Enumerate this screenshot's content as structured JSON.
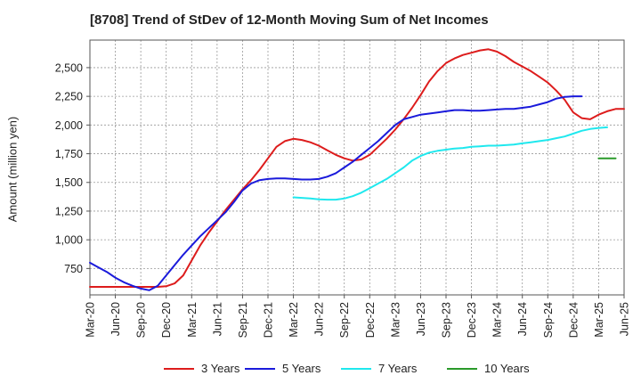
{
  "chart_data": {
    "type": "line",
    "title": "[8708]  Trend of StDev of 12-Month Moving Sum of Net Incomes",
    "xlabel": "",
    "ylabel": "Amount (million yen)",
    "ylim": [
      520,
      2740
    ],
    "yticks": [
      750,
      1000,
      1250,
      1500,
      1750,
      2000,
      2250,
      2500
    ],
    "ytick_labels": [
      "750",
      "1,000",
      "1,250",
      "1,500",
      "1,750",
      "2,000",
      "2,250",
      "2,500"
    ],
    "xticks": [
      "Mar-20",
      "Jun-20",
      "Sep-20",
      "Dec-20",
      "Mar-21",
      "Jun-21",
      "Sep-21",
      "Dec-21",
      "Mar-22",
      "Jun-22",
      "Sep-22",
      "Dec-22",
      "Mar-23",
      "Jun-23",
      "Sep-23",
      "Dec-23",
      "Mar-24",
      "Jun-24",
      "Sep-24",
      "Dec-24",
      "Mar-25",
      "Jun-25"
    ],
    "grid": true,
    "legend_position": "bottom",
    "series": [
      {
        "name": "3 Years",
        "color": "#dd1c1c",
        "start_month": 0,
        "values": [
          590,
          590,
          590,
          590,
          590,
          590,
          590,
          590,
          590,
          595,
          620,
          690,
          820,
          950,
          1060,
          1160,
          1260,
          1350,
          1440,
          1520,
          1610,
          1710,
          1810,
          1860,
          1880,
          1870,
          1850,
          1820,
          1780,
          1740,
          1710,
          1690,
          1700,
          1740,
          1810,
          1880,
          1960,
          2050,
          2150,
          2260,
          2380,
          2470,
          2540,
          2580,
          2610,
          2630,
          2650,
          2660,
          2640,
          2600,
          2550,
          2510,
          2470,
          2420,
          2370,
          2300,
          2220,
          2110,
          2060,
          2050,
          2090,
          2120,
          2140,
          2140
        ]
      },
      {
        "name": "5 Years",
        "color": "#1a1adb",
        "start_month": 0,
        "values": [
          800,
          760,
          720,
          670,
          630,
          600,
          575,
          560,
          600,
          690,
          780,
          870,
          950,
          1030,
          1100,
          1170,
          1240,
          1330,
          1430,
          1490,
          1520,
          1530,
          1535,
          1535,
          1530,
          1525,
          1525,
          1530,
          1550,
          1580,
          1630,
          1680,
          1740,
          1800,
          1860,
          1930,
          2000,
          2050,
          2070,
          2090,
          2100,
          2110,
          2120,
          2130,
          2130,
          2125,
          2125,
          2130,
          2135,
          2140,
          2140,
          2150,
          2160,
          2180,
          2200,
          2230,
          2245,
          2250,
          2250
        ]
      },
      {
        "name": "7 Years",
        "color": "#1fe8ee",
        "start_month": 24,
        "values": [
          1370,
          1365,
          1360,
          1352,
          1350,
          1350,
          1360,
          1380,
          1410,
          1450,
          1490,
          1530,
          1580,
          1630,
          1690,
          1730,
          1760,
          1775,
          1785,
          1795,
          1800,
          1810,
          1815,
          1820,
          1820,
          1825,
          1830,
          1840,
          1850,
          1860,
          1870,
          1885,
          1900,
          1925,
          1950,
          1965,
          1975,
          1980
        ]
      },
      {
        "name": "10 Years",
        "color": "#2a9a2a",
        "start_month": 60,
        "values": [
          1710,
          1710,
          1710
        ]
      }
    ]
  }
}
